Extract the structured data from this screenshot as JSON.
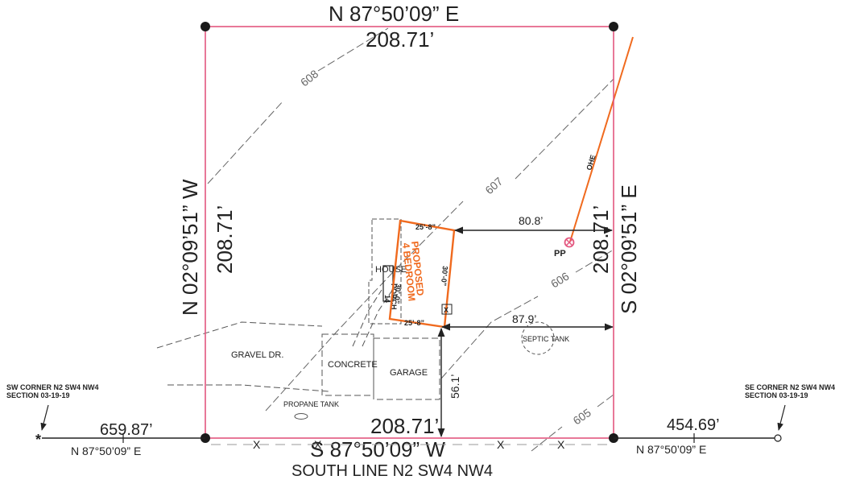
{
  "colors": {
    "property_line": "#e3577f",
    "proposed": "#f06a1e",
    "ink": "#222222",
    "contour": "#666666"
  },
  "boundary": {
    "north_bearing": "N 87°50’09” E",
    "north_distance": "208.71’",
    "west_bearing": "N 02°09’51” W",
    "west_distance": "208.71’",
    "east_bearing": "S 02°09’51” E",
    "east_distance": "208.71’",
    "south_bearing": "S 87°50’09” W",
    "south_distance": "208.71’"
  },
  "contours": [
    "608",
    "607",
    "606",
    "605"
  ],
  "proposed_bedroom": {
    "line1": "PROPOSED",
    "line2": "4 BEDROOM",
    "dim_top": "25’-8”",
    "dim_bottom": "25’-8”",
    "dim_right": "30’-0”",
    "dim_left": "30’-0”"
  },
  "house_label": "HOUSE",
  "porch_label": "PORCH",
  "porch_marks": "14",
  "window_mark": "X",
  "utility": {
    "pole_label": "PP",
    "overhead_label": "OHE"
  },
  "setbacks": {
    "east_to_addition": "80.8’",
    "east_to_tank_line": "87.9’",
    "south_offset": "56.1’"
  },
  "features": {
    "septic": "SEPTIC TANK",
    "gravel": "GRAVEL DR.",
    "concrete": "CONCRETE",
    "garage": "GARAGE",
    "propane": "PROPANE TANK"
  },
  "fence_mark": "X",
  "sw_corner": {
    "line1": "SW CORNER N2 SW4 NW4",
    "line2": "SECTION 03-19-19",
    "distance": "659.87’",
    "bearing": "N 87°50’09” E"
  },
  "se_corner": {
    "line1": "SE CORNER N2 SW4 NW4",
    "line2": "SECTION 03-19-19",
    "distance": "454.69’",
    "bearing": "N 87°50’09” E"
  },
  "south_line_label": "SOUTH LINE N2 SW4 NW4"
}
